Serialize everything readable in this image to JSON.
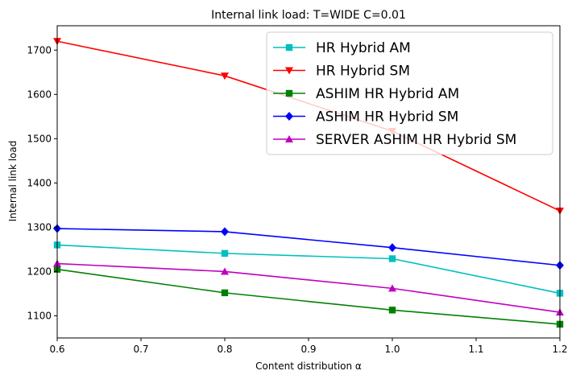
{
  "chart_data": {
    "type": "line",
    "title": "Internal link load: T=WIDE C=0.01",
    "xlabel": "Content distribution α",
    "ylabel": "Internal link load",
    "xlim": [
      0.6,
      1.2
    ],
    "ylim": [
      1050,
      1755
    ],
    "xticks": [
      0.6,
      0.7,
      0.8,
      0.9,
      1.0,
      1.1,
      1.2
    ],
    "xtick_labels": [
      "0.6",
      "0.7",
      "0.8",
      "0.9",
      "1.0",
      "1.1",
      "1.2"
    ],
    "yticks": [
      1100,
      1200,
      1300,
      1400,
      1500,
      1600,
      1700
    ],
    "ytick_labels": [
      "1100",
      "1200",
      "1300",
      "1400",
      "1500",
      "1600",
      "1700"
    ],
    "grid": false,
    "legend_position": "top-right",
    "x": [
      0.6,
      0.8,
      1.0,
      1.2
    ],
    "series": [
      {
        "name": "HR Hybrid AM",
        "values": [
          1260,
          1241,
          1229,
          1151
        ],
        "color": "#00bfbf",
        "marker": "square"
      },
      {
        "name": "HR Hybrid SM",
        "values": [
          1720,
          1642,
          1517,
          1337
        ],
        "color": "#ff0000",
        "marker": "triangle-down"
      },
      {
        "name": "ASHIM HR Hybrid AM",
        "values": [
          1205,
          1152,
          1113,
          1081
        ],
        "color": "#008000",
        "marker": "square"
      },
      {
        "name": "ASHIM HR Hybrid SM",
        "values": [
          1297,
          1290,
          1254,
          1214
        ],
        "color": "#0000ff",
        "marker": "diamond"
      },
      {
        "name": "SERVER ASHIM HR Hybrid SM",
        "values": [
          1218,
          1200,
          1162,
          1108
        ],
        "color": "#bf00bf",
        "marker": "triangle-up"
      }
    ]
  }
}
